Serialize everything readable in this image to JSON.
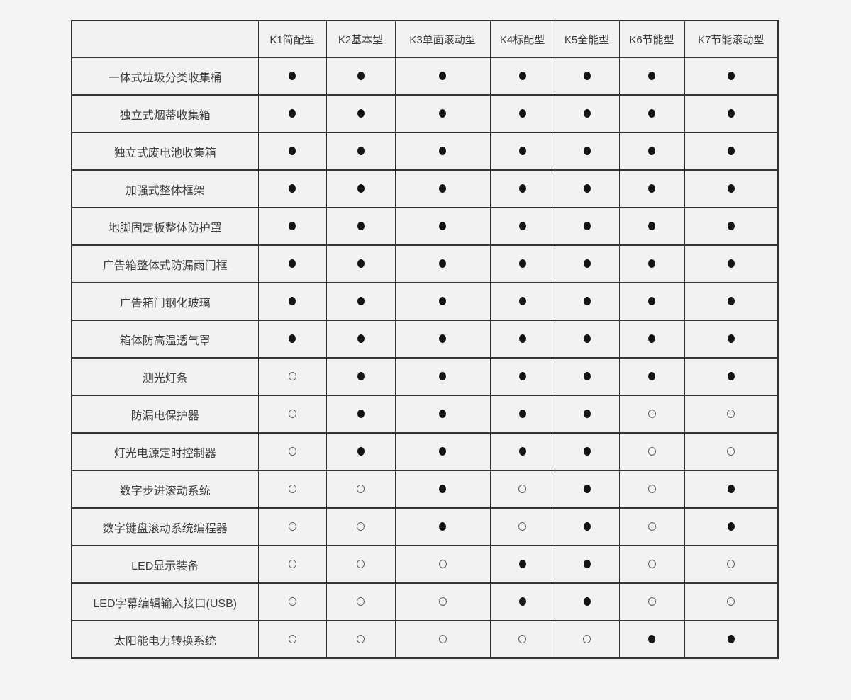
{
  "table": {
    "corner_label": "",
    "columns": [
      "K1简配型",
      "K2基本型",
      "K3单面滚动型",
      "K4标配型",
      "K5全能型",
      "K6节能型",
      "K7节能滚动型"
    ],
    "rows": [
      {
        "label": "一体式垃圾分类收集桶",
        "values": [
          1,
          1,
          1,
          1,
          1,
          1,
          1
        ]
      },
      {
        "label": "独立式烟蒂收集箱",
        "values": [
          1,
          1,
          1,
          1,
          1,
          1,
          1
        ]
      },
      {
        "label": "独立式废电池收集箱",
        "values": [
          1,
          1,
          1,
          1,
          1,
          1,
          1
        ]
      },
      {
        "label": "加强式整体框架",
        "values": [
          1,
          1,
          1,
          1,
          1,
          1,
          1
        ]
      },
      {
        "label": "地脚固定板整体防护罩",
        "values": [
          1,
          1,
          1,
          1,
          1,
          1,
          1
        ]
      },
      {
        "label": "广告箱整体式防漏雨门框",
        "values": [
          1,
          1,
          1,
          1,
          1,
          1,
          1
        ]
      },
      {
        "label": "广告箱门钢化玻璃",
        "values": [
          1,
          1,
          1,
          1,
          1,
          1,
          1
        ]
      },
      {
        "label": "箱体防高温透气罩",
        "values": [
          1,
          1,
          1,
          1,
          1,
          1,
          1
        ]
      },
      {
        "label": "测光灯条",
        "values": [
          0,
          1,
          1,
          1,
          1,
          1,
          1
        ]
      },
      {
        "label": "防漏电保护器",
        "values": [
          0,
          1,
          1,
          1,
          1,
          0,
          0
        ]
      },
      {
        "label": "灯光电源定时控制器",
        "values": [
          0,
          1,
          1,
          1,
          1,
          0,
          0
        ]
      },
      {
        "label": "数字步进滚动系统",
        "values": [
          0,
          0,
          1,
          0,
          1,
          0,
          1
        ]
      },
      {
        "label": "数字键盘滚动系统编程器",
        "values": [
          0,
          0,
          1,
          0,
          1,
          0,
          1
        ]
      },
      {
        "label": "LED显示装备",
        "values": [
          0,
          0,
          0,
          1,
          1,
          0,
          0
        ]
      },
      {
        "label": "LED字幕编辑输入接口(USB)",
        "values": [
          0,
          0,
          0,
          1,
          1,
          0,
          0
        ]
      },
      {
        "label": "太阳能电力转换系统",
        "values": [
          0,
          0,
          0,
          0,
          0,
          1,
          1
        ]
      }
    ],
    "symbols": {
      "included": "●",
      "not_included": "○"
    }
  },
  "colors": {
    "page_background": "#f4f4f4",
    "cell_background": "#f2f2f2",
    "border": "#333333",
    "text": "#3d3d3d",
    "dot_filled": "#141414",
    "dot_hollow_outline": "#606060"
  }
}
